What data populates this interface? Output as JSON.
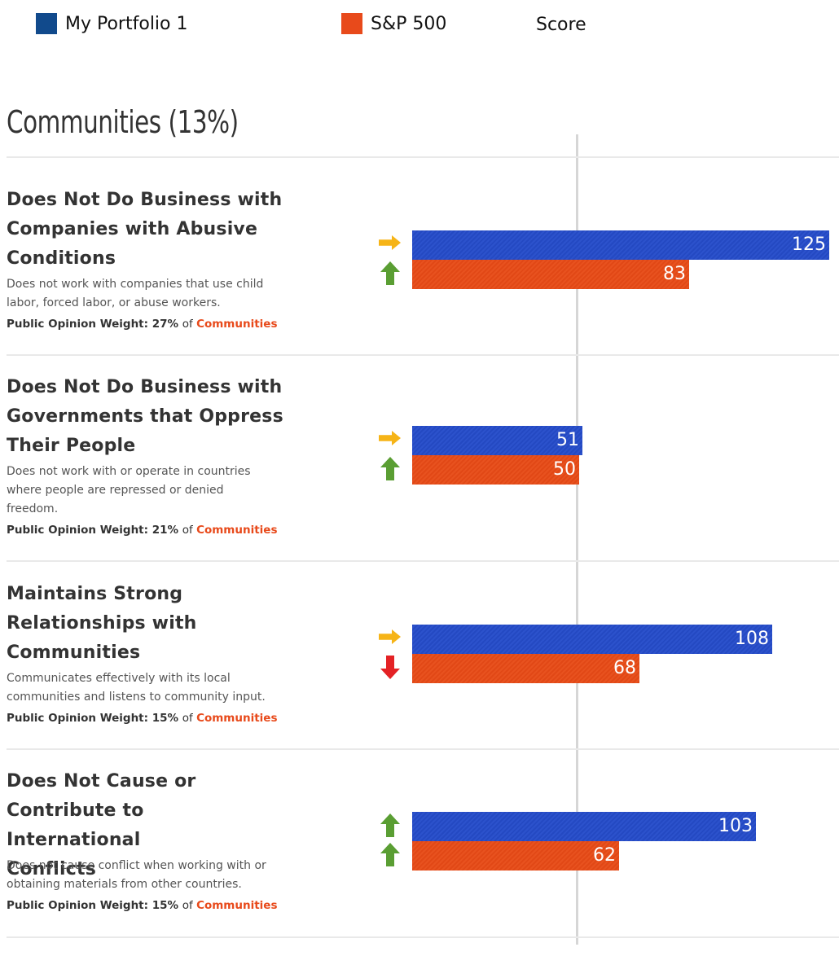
{
  "legend": {
    "portfolio_label": "My Portfolio 1",
    "sp_label": "S&P 500",
    "score_label": "Score",
    "portfolio_color": "#114a8c",
    "sp_color": "#e84a1b"
  },
  "section": {
    "title": "Communities (13%)"
  },
  "rows": [
    {
      "title_lines": [
        "Does Not Do Business with",
        "Companies with Abusive",
        "Conditions"
      ],
      "desc_lines": [
        "Does not work with companies that use child",
        "labor, forced labor, or abuse workers."
      ],
      "weight_prefix": "Public Opinion Weight: 27%",
      "weight_of": "of",
      "weight_category": "Communities",
      "portfolio_value": "125",
      "sp_value": "83",
      "portfolio_indicator": "right-arrow-icon",
      "sp_indicator": "up-arrow-icon"
    },
    {
      "title_lines": [
        "Does Not Do Business with",
        "Governments that Oppress",
        "Their People"
      ],
      "desc_lines": [
        "Does not work with or operate in countries",
        "where people are repressed or denied",
        "freedom."
      ],
      "weight_prefix": "Public Opinion Weight: 21%",
      "weight_of": "of",
      "weight_category": "Communities",
      "portfolio_value": "51",
      "sp_value": "50",
      "portfolio_indicator": "right-arrow-icon",
      "sp_indicator": "up-arrow-icon"
    },
    {
      "title_lines": [
        "Maintains Strong",
        "Relationships with",
        "Communities"
      ],
      "desc_lines": [
        "Communicates effectively with its local",
        "communities and listens to community input."
      ],
      "weight_prefix": "Public Opinion Weight: 15%",
      "weight_of": "of",
      "weight_category": "Communities",
      "portfolio_value": "108",
      "sp_value": "68",
      "portfolio_indicator": "right-arrow-icon",
      "sp_indicator": "down-arrow-icon"
    },
    {
      "title_lines": [
        "Does Not Cause or",
        "Contribute to International",
        "Conflicts"
      ],
      "desc_lines": [
        "Does not cause conflict when working with or",
        "obtaining materials from other countries."
      ],
      "weight_prefix": "Public Opinion Weight: 15%",
      "weight_of": "of",
      "weight_category": "Communities",
      "portfolio_value": "103",
      "sp_value": "62",
      "portfolio_indicator": "up-arrow-icon",
      "sp_indicator": "up-arrow-icon"
    }
  ],
  "chart_data": {
    "type": "bar",
    "orientation": "horizontal",
    "categories": [
      "Does Not Do Business with Companies with Abusive Conditions",
      "Does Not Do Business with Governments that Oppress Their People",
      "Maintains Strong Relationships with Communities",
      "Does Not Cause or Contribute to International Conflicts"
    ],
    "series": [
      {
        "name": "My Portfolio 1",
        "values": [
          125,
          51,
          108,
          103
        ],
        "color": "#2449c2"
      },
      {
        "name": "S&P 500",
        "values": [
          83,
          50,
          68,
          62
        ],
        "color": "#e14816"
      }
    ],
    "reference_line": 50,
    "xlim": [
      0,
      127
    ],
    "title": "Communities (13%)",
    "xlabel": "Score",
    "legend": "top"
  },
  "colors": {
    "arrow_right": "#f6b417",
    "arrow_up": "#5a9e33",
    "arrow_down": "#e42225",
    "category_link": "#e84a1b"
  }
}
